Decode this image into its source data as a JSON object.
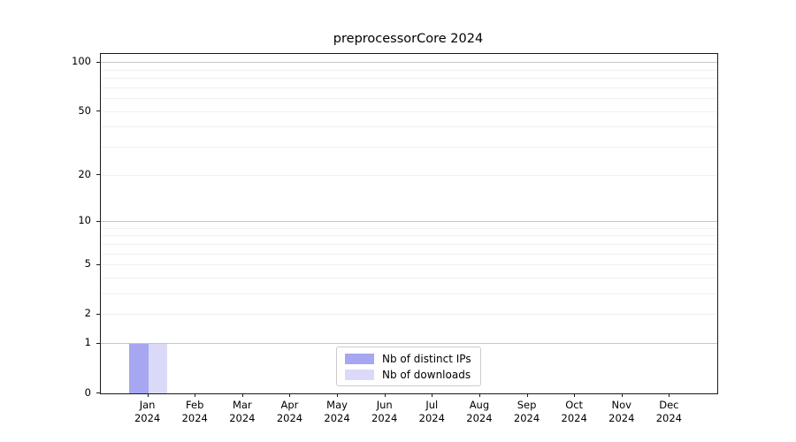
{
  "chart_data": {
    "type": "bar",
    "title": "preprocessorCore 2024",
    "x_tick_months": [
      "Jan",
      "Feb",
      "Mar",
      "Apr",
      "May",
      "Jun",
      "Jul",
      "Aug",
      "Sep",
      "Oct",
      "Nov",
      "Dec"
    ],
    "x_tick_year": "2024",
    "series": [
      {
        "name": "Nb of distinct IPs",
        "color": "#a6a6f1",
        "values": [
          1,
          0,
          0,
          0,
          0,
          0,
          0,
          0,
          0,
          0,
          0,
          0
        ]
      },
      {
        "name": "Nb of downloads",
        "color": "#dadaf8",
        "values": [
          1,
          0,
          0,
          0,
          0,
          0,
          0,
          0,
          0,
          0,
          0,
          0
        ]
      }
    ],
    "yscale": "log1p",
    "ylim": [
      0,
      113
    ],
    "yticks_labeled": [
      0,
      1,
      2,
      5,
      10,
      20,
      50,
      100
    ],
    "ygrid_major": [
      1,
      10,
      100
    ],
    "ygrid_minor": [
      2,
      3,
      4,
      5,
      6,
      7,
      8,
      9,
      20,
      30,
      40,
      50,
      60,
      70,
      80,
      90
    ],
    "grid_major_color": "#c6c6c6",
    "grid_minor_color": "#f0f0f0",
    "bar_width_fraction": 0.4,
    "legend": {
      "position": "lower center",
      "entries": [
        "Nb of distinct IPs",
        "Nb of downloads"
      ]
    }
  }
}
